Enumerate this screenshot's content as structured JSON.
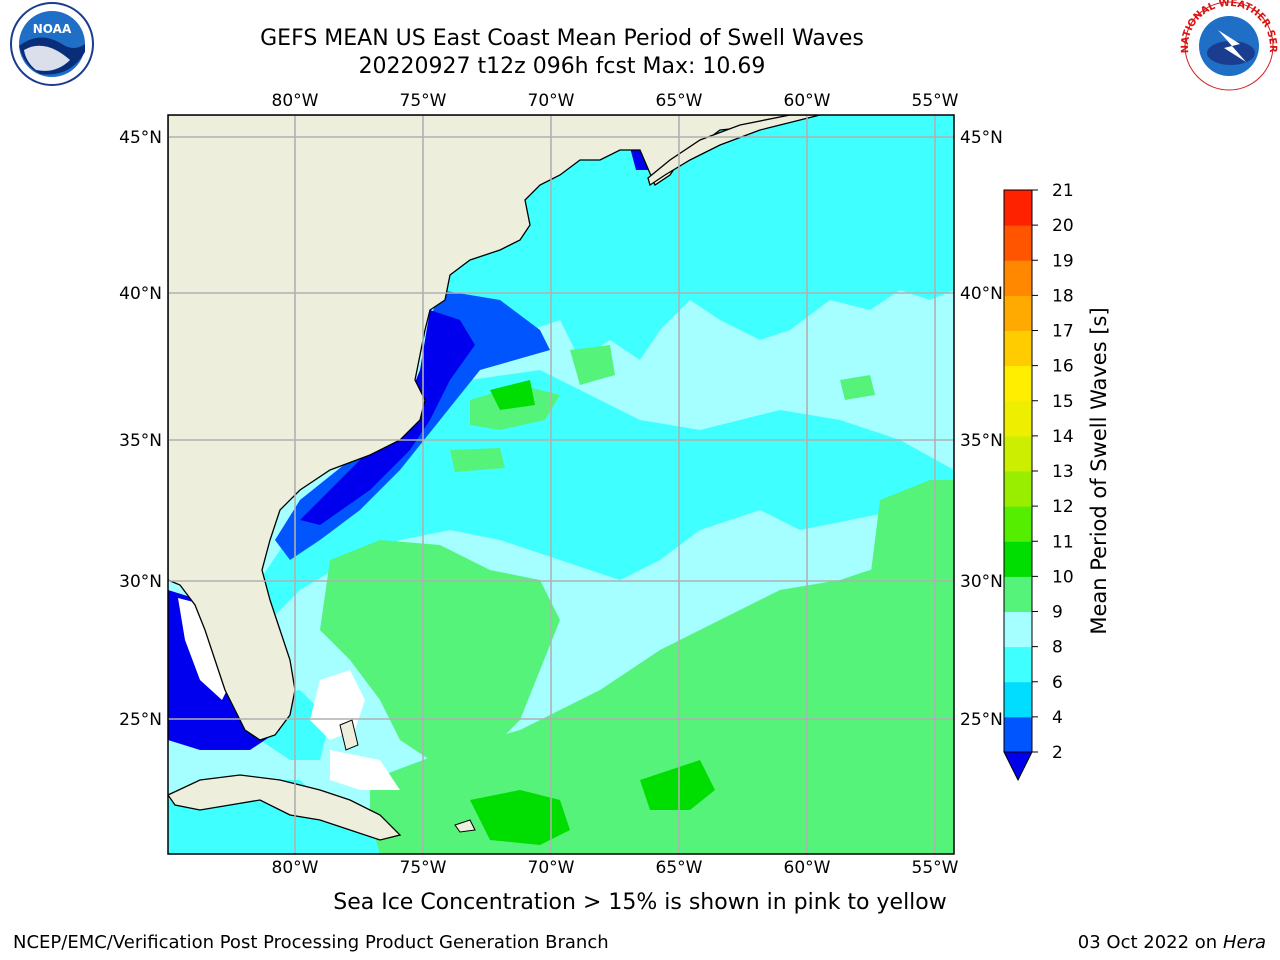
{
  "title": {
    "line1": "GEFS MEAN US East Coast Mean Period of Swell Waves",
    "line2": "20220927 t12z 096h fcst   Max: 10.69"
  },
  "logos": {
    "left": "NOAA",
    "right": "NATIONAL WEATHER SERVICE"
  },
  "map": {
    "lon_labels": [
      "80°W",
      "75°W",
      "70°W",
      "65°W",
      "60°W",
      "55°W"
    ],
    "lat_labels": [
      "45°N",
      "40°N",
      "35°N",
      "30°N",
      "25°N"
    ],
    "lon_range": [
      -85,
      -54.5
    ],
    "lat_range": [
      20.5,
      46
    ],
    "grid": true,
    "land_color": "#eeeedc",
    "ocean_base_color": "#a5feff"
  },
  "colorbar": {
    "title": "Mean Period of Swell Waves [s]",
    "ticks": [
      "2",
      "4",
      "6",
      "8",
      "9",
      "10",
      "11",
      "12",
      "13",
      "14",
      "15",
      "16",
      "17",
      "18",
      "19",
      "20",
      "21"
    ],
    "colors": [
      "#0055ff",
      "#00ddff",
      "#40ffff",
      "#a5feff",
      "#55f37a",
      "#00dd00",
      "#55ee00",
      "#99ee00",
      "#ccee00",
      "#eeee00",
      "#ffee00",
      "#ffcc00",
      "#ffaa00",
      "#ff8800",
      "#ff5500",
      "#ff2200"
    ],
    "under_color": "#0000ee"
  },
  "footnote": "Sea Ice Concentration > 15% is shown in pink to yellow",
  "footer": {
    "left": "NCEP/EMC/Verification Post Processing Product Generation Branch",
    "right_date": "03 Oct 2022 on ",
    "right_host": "Hera"
  }
}
